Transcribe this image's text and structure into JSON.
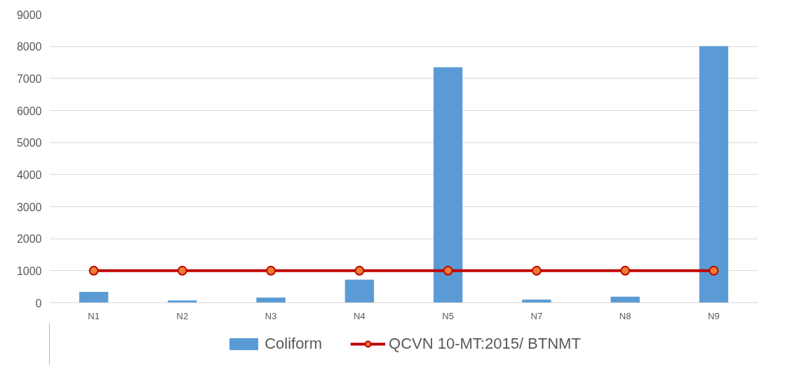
{
  "chart_data": {
    "type": "bar",
    "categories": [
      "N1",
      "N2",
      "N3",
      "N4",
      "N5",
      "N7",
      "N8",
      "N9"
    ],
    "series": [
      {
        "name": "Coliform",
        "color": "#5b9bd5",
        "values": [
          330,
          60,
          150,
          710,
          7340,
          90,
          180,
          8000
        ]
      },
      {
        "name": "QCVN 10-MT:2015/ BTNMT",
        "type": "line",
        "color": "#c00000",
        "values": [
          1000,
          1000,
          1000,
          1000,
          1000,
          1000,
          1000,
          1000
        ]
      }
    ],
    "ylim": [
      0,
      9000
    ],
    "yticks": [
      0,
      1000,
      2000,
      3000,
      4000,
      5000,
      6000,
      7000,
      8000,
      9000
    ],
    "grid": "y",
    "legend": "bottom",
    "marker": "circle",
    "line_style": "solid"
  }
}
